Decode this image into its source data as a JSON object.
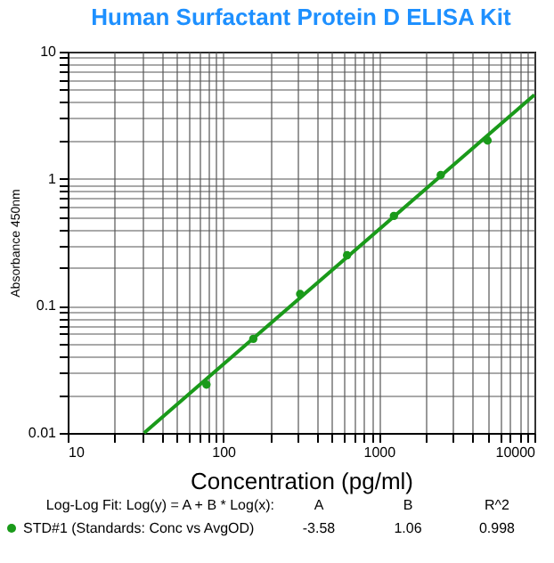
{
  "chart_data": {
    "type": "scatter",
    "title": "Human Surfactant  Protein D ELISA Kit",
    "xlabel": "Concentration (pg/ml)",
    "ylabel": "Absorbance 450nm",
    "log": "xy",
    "grid": true,
    "legend": "bottom",
    "xlim": [
      10,
      10000
    ],
    "ylim": [
      0.01,
      10
    ],
    "xticks": [
      10,
      {
        "value": 20,
        "label": null
      },
      {
        "value": 30,
        "label": null
      },
      {
        "value": 40,
        "label": null
      },
      {
        "value": 50,
        "label": null
      },
      {
        "value": 60,
        "label": null
      },
      {
        "value": 70,
        "label": null
      },
      {
        "value": 80,
        "label": null
      },
      {
        "value": 90,
        "label": null
      },
      100,
      {
        "value": 200,
        "label": null
      },
      {
        "value": 300,
        "label": null
      },
      {
        "value": 400,
        "label": null
      },
      {
        "value": 500,
        "label": null
      },
      {
        "value": 600,
        "label": null
      },
      {
        "value": 700,
        "label": null
      },
      {
        "value": 800,
        "label": null
      },
      {
        "value": 900,
        "label": null
      },
      1000,
      {
        "value": 2000,
        "label": null
      },
      {
        "value": 3000,
        "label": null
      },
      {
        "value": 4000,
        "label": null
      },
      {
        "value": 5000,
        "label": null
      },
      {
        "value": 6000,
        "label": null
      },
      {
        "value": 7000,
        "label": null
      },
      {
        "value": 8000,
        "label": null
      },
      {
        "value": 9000,
        "label": null
      },
      10000
    ],
    "yticks": [
      0.01,
      {
        "value": 0.02,
        "label": null
      },
      {
        "value": 0.03,
        "label": null
      },
      {
        "value": 0.04,
        "label": null
      },
      {
        "value": 0.05,
        "label": null
      },
      {
        "value": 0.06,
        "label": null
      },
      {
        "value": 0.07,
        "label": null
      },
      {
        "value": 0.08,
        "label": null
      },
      {
        "value": 0.09,
        "label": null
      },
      0.1,
      {
        "value": 0.2,
        "label": null
      },
      {
        "value": 0.3,
        "label": null
      },
      {
        "value": 0.4,
        "label": null
      },
      {
        "value": 0.5,
        "label": null
      },
      {
        "value": 0.6,
        "label": null
      },
      {
        "value": 0.7,
        "label": null
      },
      {
        "value": 0.8,
        "label": null
      },
      {
        "value": 0.9,
        "label": null
      },
      1,
      {
        "value": 2,
        "label": null
      },
      {
        "value": 3,
        "label": null
      },
      {
        "value": 4,
        "label": null
      },
      {
        "value": 5,
        "label": null
      },
      {
        "value": 6,
        "label": null
      },
      {
        "value": 7,
        "label": null
      },
      {
        "value": 8,
        "label": null
      },
      {
        "value": 9,
        "label": null
      },
      10
    ],
    "series": [
      {
        "name": "STD#1 (Standards: Conc vs AvgOD)",
        "color": "#1a9a1a",
        "marker": "circle",
        "x": [
          78,
          156,
          312,
          625,
          1250,
          2500,
          5000
        ],
        "values": [
          0.024,
          0.055,
          0.124,
          0.25,
          0.51,
          1.07,
          2.0
        ]
      },
      {
        "type": "line",
        "color": "#1a9a1a",
        "marker": "none",
        "x": [
          31,
          10000
        ],
        "values": [
          0.01,
          4.57
        ]
      }
    ],
    "annotations": [
      "Log-Log Fit: Log(y) = A + B * Log(x):",
      "A",
      "B",
      "R^2",
      "-3.58",
      "1.06",
      "0.998"
    ]
  }
}
